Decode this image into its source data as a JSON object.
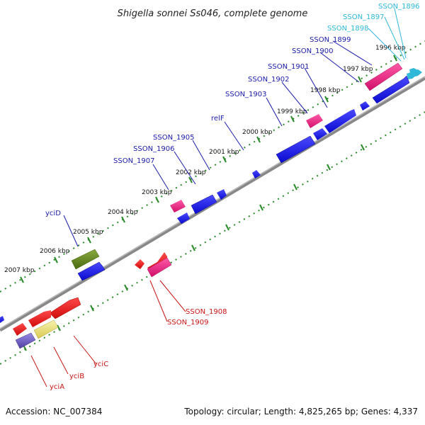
{
  "title": "Shigella sonnei Ss046, complete genome",
  "accession": "Accession: NC_007384",
  "summary": "Topology: circular; Length: 4,825,265 bp; Genes: 4,337",
  "ticks": [
    "1996 kbp",
    "1997 kbp",
    "1998 kbp",
    "1999 kbp",
    "2000 kbp",
    "2001 kbp",
    "2002 kbp",
    "2003 kbp",
    "2004 kbp",
    "2005 kbp",
    "2006 kbp",
    "2007 kbp"
  ],
  "colors": {
    "forward_gene": "#1010ee",
    "reverse_gene": "#ee1010",
    "pink_gene": "#e8207a",
    "olive_gene": "#6a8a20",
    "purple_gene": "#7060c0",
    "yellow_gene": "#e8e07a",
    "label_forward": "#1a1aa8",
    "label_reverse": "#c81414",
    "label_cyan": "#30b8d8",
    "backbone": "#808080",
    "tick": "#2a8a2a"
  },
  "genes": [
    {
      "label": "SSON_1896",
      "color_key": "label_cyan"
    },
    {
      "label": "SSON_1897",
      "color_key": "label_cyan"
    },
    {
      "label": "SSON_1898",
      "color_key": "label_cyan"
    },
    {
      "label": "SSON_1899",
      "color_key": "label_forward"
    },
    {
      "label": "SSON_1900",
      "color_key": "label_forward"
    },
    {
      "label": "SSON_1901",
      "color_key": "label_forward"
    },
    {
      "label": "SSON_1902",
      "color_key": "label_forward"
    },
    {
      "label": "SSON_1903",
      "color_key": "label_forward"
    },
    {
      "label": "relF",
      "color_key": "label_forward"
    },
    {
      "label": "SSON_1905",
      "color_key": "label_forward"
    },
    {
      "label": "SSON_1906",
      "color_key": "label_forward"
    },
    {
      "label": "SSON_1907",
      "color_key": "label_forward"
    },
    {
      "label": "yciD",
      "color_key": "label_forward"
    },
    {
      "label": "SSON_1908",
      "color_key": "label_reverse"
    },
    {
      "label": "SSON_1909",
      "color_key": "label_reverse"
    },
    {
      "label": "yciC",
      "color_key": "label_reverse"
    },
    {
      "label": "yciB",
      "color_key": "label_reverse"
    },
    {
      "label": "yciA",
      "color_key": "label_reverse"
    }
  ]
}
